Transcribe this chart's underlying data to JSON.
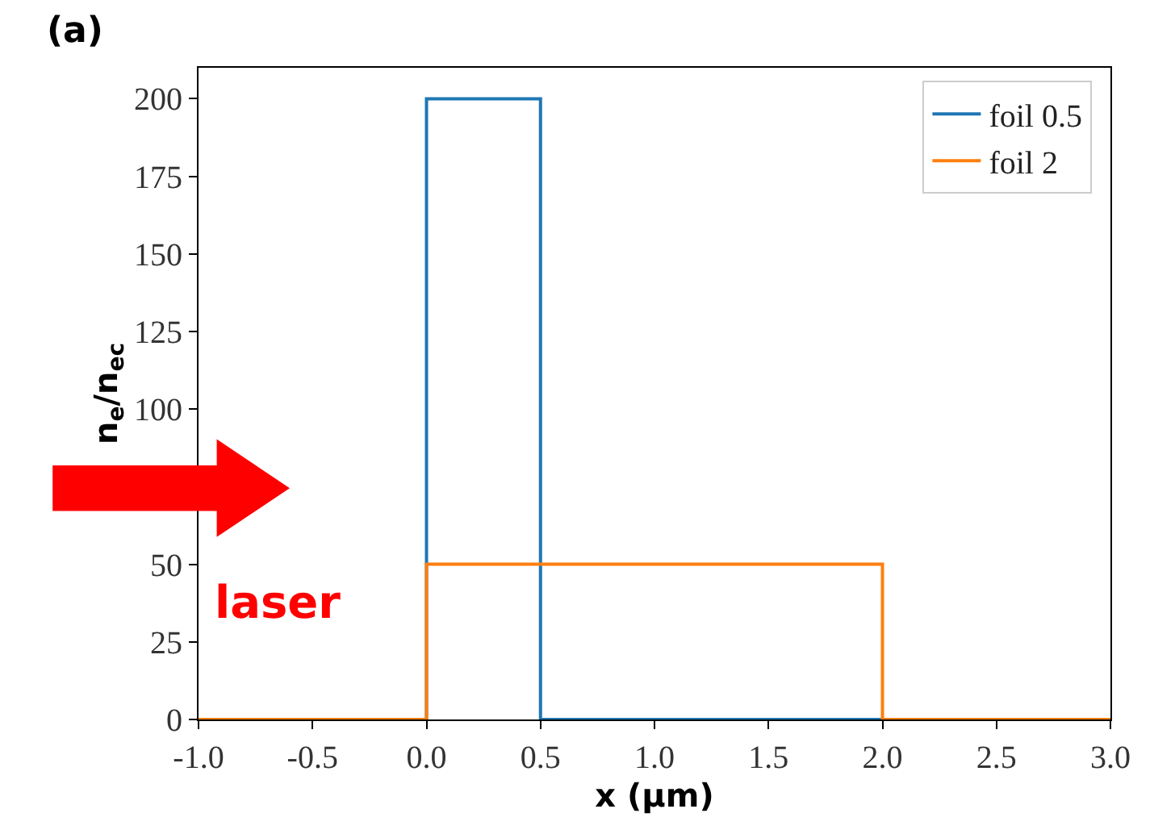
{
  "chart_data": {
    "type": "line",
    "xlabel": "x (μm)",
    "ylabel": "n$_{e}$/n$_{ec}$",
    "series": [
      {
        "name": "foil 0.5",
        "color": "#1f77b4",
        "x": [
          -1,
          0,
          0,
          0.5,
          0.5,
          3
        ],
        "values": [
          0,
          0,
          200,
          200,
          0,
          0
        ]
      },
      {
        "name": "foil 2",
        "color": "#ff7f0e",
        "x": [
          -1,
          0,
          0,
          2,
          2,
          3
        ],
        "values": [
          0,
          0,
          50,
          50,
          0,
          0
        ]
      }
    ],
    "xlim": [
      -1,
      3
    ],
    "xticks": [
      {
        "value": -1,
        "label": "-1.0"
      },
      {
        "value": -0.5,
        "label": "-0.5"
      },
      {
        "value": 0,
        "label": "0.0"
      },
      0.5,
      {
        "value": 1,
        "label": "1.0"
      },
      1.5,
      {
        "value": 2,
        "label": "2.0"
      },
      2.5,
      {
        "value": 3,
        "label": "3.0"
      }
    ],
    "ylim": [
      0,
      210
    ],
    "yticks": [
      0,
      25,
      50,
      {
        "value": 75,
        "label": null
      },
      100,
      125,
      150,
      175,
      200
    ],
    "annotations": [
      "(a)",
      "laser"
    ],
    "legend": "top right",
    "marker": "none",
    "line_style": "solid"
  }
}
